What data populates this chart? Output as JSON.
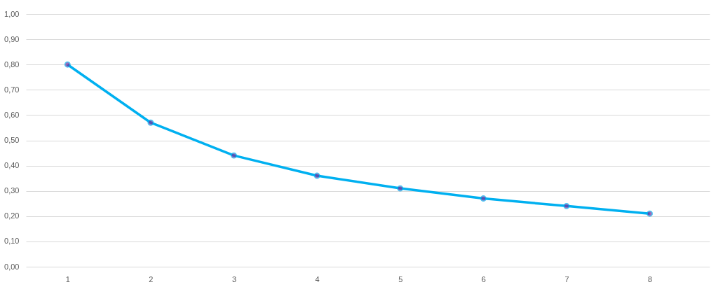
{
  "chart_data": {
    "type": "line",
    "categories": [
      "1",
      "2",
      "3",
      "4",
      "5",
      "6",
      "7",
      "8"
    ],
    "series": [
      {
        "color": "#00b0f0",
        "values": [
          0.8,
          0.57,
          0.44,
          0.36,
          0.31,
          0.27,
          0.24,
          0.21
        ]
      }
    ],
    "ylim": [
      0,
      1
    ],
    "yticks": [
      {
        "value": 0,
        "label": "0,00"
      },
      {
        "value": 0.1,
        "label": "0,10"
      },
      {
        "value": 0.2,
        "label": "0,20"
      },
      {
        "value": 0.3,
        "label": "0,30"
      },
      {
        "value": 0.4,
        "label": "0,40"
      },
      {
        "value": 0.5,
        "label": "0,50"
      },
      {
        "value": 0.6,
        "label": "0,60"
      },
      {
        "value": 0.7,
        "label": "0,70"
      },
      {
        "value": 0.8,
        "label": "0,80"
      },
      {
        "value": 0.9,
        "label": "0,90"
      },
      {
        "value": 1,
        "label": "1,00"
      }
    ],
    "grid": "y",
    "marker": "circle",
    "line_style": "solid",
    "legend": false
  }
}
